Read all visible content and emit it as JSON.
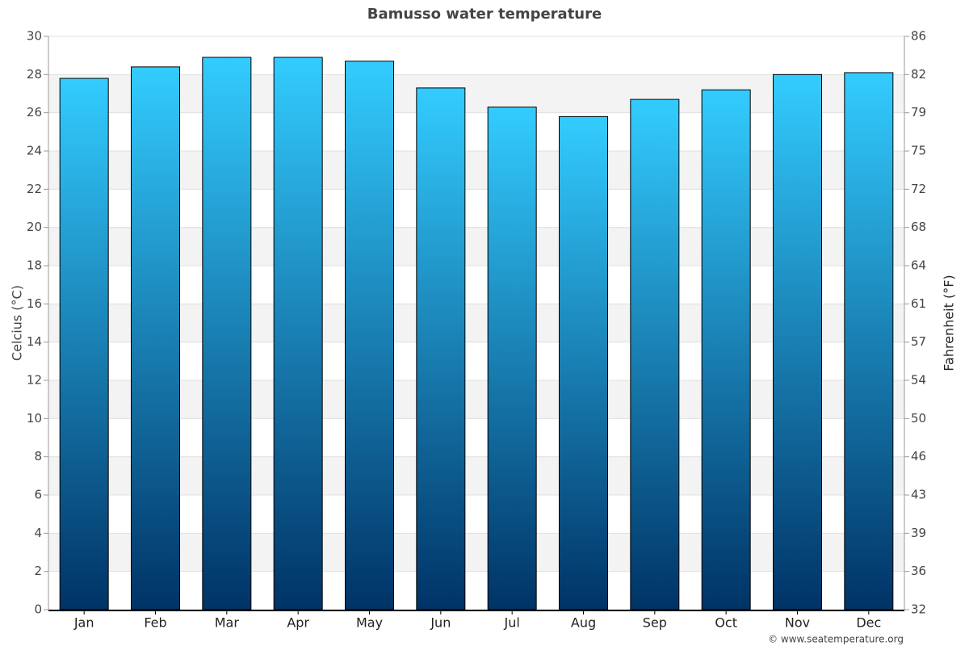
{
  "chart_data": {
    "type": "bar",
    "title": "Bamusso water temperature",
    "y_label": "Celcius (°C)",
    "y2_label": "Fahrenheit (°F)",
    "credit": "© www.seatemperature.org",
    "categories": [
      "Jan",
      "Feb",
      "Mar",
      "Apr",
      "May",
      "Jun",
      "Jul",
      "Aug",
      "Sep",
      "Oct",
      "Nov",
      "Dec"
    ],
    "values": [
      27.8,
      28.4,
      28.9,
      28.9,
      28.7,
      27.3,
      26.3,
      25.8,
      26.7,
      27.2,
      28.0,
      28.1
    ],
    "color": [
      "#33ccff",
      "#003366"
    ],
    "ylim": [
      0,
      30
    ],
    "yticks": [
      0,
      2,
      4,
      6,
      8,
      10,
      12,
      14,
      16,
      18,
      20,
      22,
      24,
      26,
      28,
      30
    ],
    "y2lim": [
      32,
      86
    ],
    "y2ticks": [
      32,
      {
        "value": 35.6,
        "label": "36"
      },
      {
        "value": 39.2,
        "label": "39"
      },
      {
        "value": 42.8,
        "label": "43"
      },
      {
        "value": 46.4,
        "label": "46"
      },
      50,
      {
        "value": 53.6,
        "label": "54"
      },
      {
        "value": 57.2,
        "label": "57"
      },
      {
        "value": 60.8,
        "label": "61"
      },
      {
        "value": 64.4,
        "label": "64"
      },
      68,
      {
        "value": 71.6,
        "label": "72"
      },
      {
        "value": 75.2,
        "label": "75"
      },
      {
        "value": 78.8,
        "label": "79"
      },
      {
        "value": 82.4,
        "label": "82"
      },
      86
    ],
    "grid": true
  }
}
